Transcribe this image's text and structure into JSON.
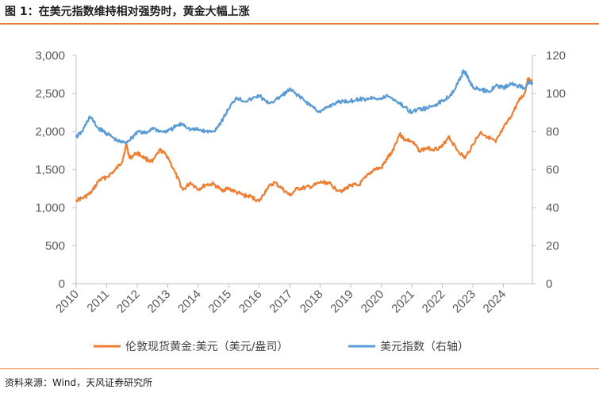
{
  "figure": {
    "title": "图 1：在美元指数维持相对强势时，黄金大幅上涨",
    "source": "资料来源：Wind，天风证券研究所"
  },
  "chart_data": {
    "type": "line",
    "title": "图 1：在美元指数维持相对强势时，黄金大幅上涨",
    "xlabel": "",
    "ylabel": "",
    "x_tick_labels": [
      "2010",
      "2011",
      "2012",
      "2013",
      "2014",
      "2015",
      "2016",
      "2017",
      "2018",
      "2019",
      "2020",
      "2021",
      "2022",
      "2023",
      "2024"
    ],
    "xlim": [
      2010.0,
      2024.95
    ],
    "y_left": {
      "ylim": [
        0,
        3000
      ],
      "ticks": [
        0,
        500,
        1000,
        1500,
        2000,
        2500,
        3000
      ],
      "tick_labels": [
        "0",
        "500",
        "1,000",
        "1,500",
        "2,000",
        "2,500",
        "3,000"
      ]
    },
    "y_right": {
      "ylim": [
        0,
        120
      ],
      "ticks": [
        0,
        20,
        40,
        60,
        80,
        100,
        120
      ],
      "tick_labels": [
        "0",
        "20",
        "40",
        "60",
        "80",
        "100",
        "120"
      ]
    },
    "grid": false,
    "legend_position": "bottom",
    "series": [
      {
        "name": "伦敦现货黄金:美元（美元/盎司）",
        "axis": "left",
        "color": "#ed7d31",
        "x": [
          2010.0,
          2010.25,
          2010.5,
          2010.75,
          2011.0,
          2011.25,
          2011.5,
          2011.65,
          2011.75,
          2012.0,
          2012.25,
          2012.5,
          2012.75,
          2013.0,
          2013.25,
          2013.5,
          2013.75,
          2014.0,
          2014.25,
          2014.5,
          2014.75,
          2015.0,
          2015.25,
          2015.5,
          2015.75,
          2016.0,
          2016.25,
          2016.5,
          2016.75,
          2017.0,
          2017.25,
          2017.5,
          2017.75,
          2018.0,
          2018.25,
          2018.5,
          2018.75,
          2019.0,
          2019.25,
          2019.5,
          2019.75,
          2020.0,
          2020.2,
          2020.35,
          2020.6,
          2020.75,
          2021.0,
          2021.25,
          2021.5,
          2021.75,
          2022.0,
          2022.2,
          2022.5,
          2022.75,
          2023.0,
          2023.25,
          2023.5,
          2023.75,
          2024.0,
          2024.25,
          2024.5,
          2024.7,
          2024.8,
          2024.95
        ],
        "y": [
          1100,
          1130,
          1200,
          1360,
          1400,
          1480,
          1600,
          1830,
          1650,
          1720,
          1650,
          1600,
          1760,
          1670,
          1450,
          1230,
          1330,
          1240,
          1300,
          1310,
          1230,
          1250,
          1200,
          1160,
          1140,
          1080,
          1250,
          1330,
          1250,
          1160,
          1250,
          1260,
          1280,
          1330,
          1330,
          1250,
          1220,
          1300,
          1290,
          1400,
          1500,
          1520,
          1650,
          1730,
          1970,
          1900,
          1870,
          1750,
          1780,
          1770,
          1800,
          1940,
          1750,
          1650,
          1830,
          1990,
          1930,
          1860,
          2040,
          2200,
          2400,
          2500,
          2700,
          2640
        ]
      },
      {
        "name": "美元指数（右轴）",
        "axis": "right",
        "color": "#5b9bd5",
        "x": [
          2010.0,
          2010.2,
          2010.45,
          2010.7,
          2010.9,
          2011.1,
          2011.35,
          2011.6,
          2011.85,
          2012.0,
          2012.3,
          2012.5,
          2012.75,
          2013.0,
          2013.3,
          2013.5,
          2013.75,
          2014.0,
          2014.25,
          2014.5,
          2014.75,
          2015.0,
          2015.25,
          2015.5,
          2015.75,
          2016.0,
          2016.25,
          2016.5,
          2016.75,
          2017.0,
          2017.2,
          2017.5,
          2017.75,
          2018.0,
          2018.25,
          2018.5,
          2018.75,
          2019.0,
          2019.25,
          2019.5,
          2019.75,
          2020.0,
          2020.2,
          2020.5,
          2020.75,
          2021.0,
          2021.25,
          2021.5,
          2021.75,
          2022.0,
          2022.25,
          2022.5,
          2022.7,
          2022.8,
          2023.0,
          2023.25,
          2023.5,
          2023.75,
          2024.0,
          2024.25,
          2024.5,
          2024.7,
          2024.85,
          2024.95
        ],
        "y": [
          77,
          80,
          88,
          82,
          80,
          78,
          75,
          74,
          77,
          80,
          79,
          82,
          80,
          80,
          83,
          84,
          81,
          81,
          80,
          80,
          85,
          92,
          98,
          96,
          97,
          99,
          95,
          96,
          99,
          102,
          100,
          96,
          93,
          90,
          93,
          95,
          96,
          96,
          97,
          97,
          98,
          97,
          99,
          96,
          93,
          90,
          92,
          92,
          94,
          96,
          99,
          105,
          112,
          110,
          103,
          102,
          101,
          104,
          103,
          105,
          104,
          103,
          106,
          105
        ]
      }
    ]
  }
}
